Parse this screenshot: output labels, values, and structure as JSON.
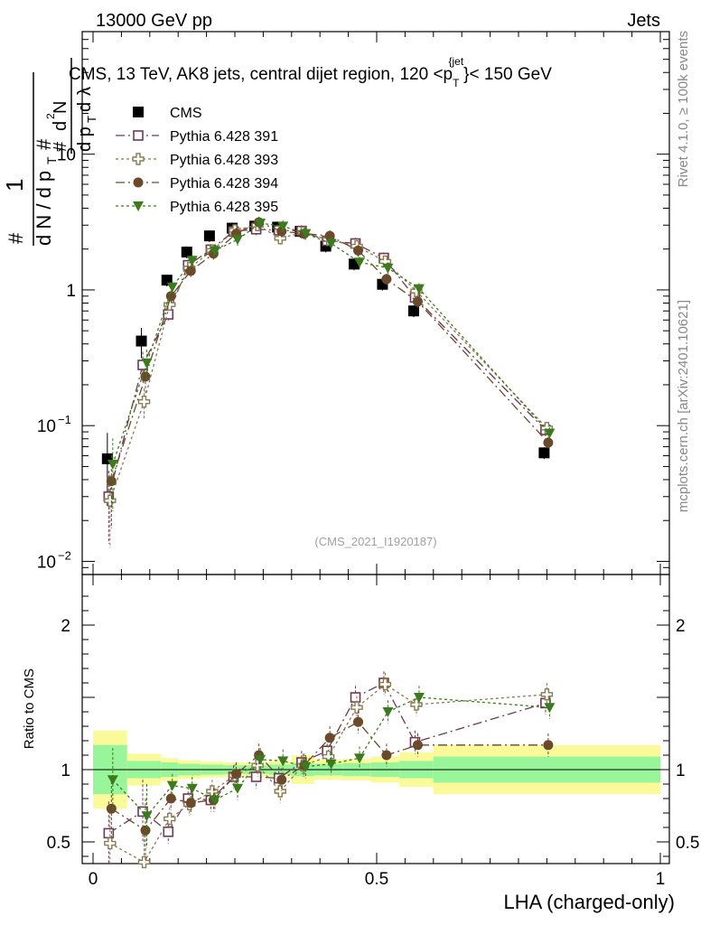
{
  "chart_data": {
    "type": "scatter",
    "header_left": "13000 GeV pp",
    "header_right": "Jets",
    "title": "CMS, 13 TeV, AK8 jets, central dijet region, 120 <p",
    "title_sub": "T",
    "title_sup": "{jet",
    "title_tail": "}< 150 GeV",
    "watermark": "(CMS_2021_I1920187)",
    "side_label_top": "Rivet 4.1.0, ≥ 100k events",
    "side_label_bottom": "mcplots.cern.ch [arXiv:2401.10621]",
    "xlabel": "LHA (charged-only)",
    "ylabel_main": "1/N dN/dp_T dλ",
    "ylabel_ratio": "Ratio to CMS",
    "xlim": [
      0,
      1
    ],
    "ylim_main": [
      0.008,
      80
    ],
    "ylim_ratio": [
      0.35,
      2.35
    ],
    "x_ticks": [
      {
        "v": 0,
        "label": "0"
      },
      {
        "v": 0.5,
        "label": "0.5"
      },
      {
        "v": 1,
        "label": "1"
      }
    ],
    "y_ticks_main": [
      {
        "v": 0.01,
        "base": "10",
        "exp": "−2"
      },
      {
        "v": 0.1,
        "base": "10",
        "exp": "−1"
      },
      {
        "v": 1,
        "base": "1",
        "exp": ""
      },
      {
        "v": 10,
        "base": "10",
        "exp": ""
      }
    ],
    "y_ticks_ratio": [
      {
        "v": 0.5,
        "label": "0.5"
      },
      {
        "v": 1,
        "label": "1"
      },
      {
        "v": 2,
        "label": "2"
      }
    ],
    "bin_edges": [
      0.0,
      0.06,
      0.12,
      0.15,
      0.19,
      0.23,
      0.27,
      0.31,
      0.35,
      0.39,
      0.44,
      0.49,
      0.54,
      0.6,
      1.0
    ],
    "bin_centers": [
      0.03,
      0.09,
      0.135,
      0.17,
      0.21,
      0.25,
      0.29,
      0.33,
      0.37,
      0.415,
      0.465,
      0.515,
      0.57,
      0.8
    ],
    "band_stat": [
      0.17,
      0.06,
      0.05,
      0.04,
      0.035,
      0.03,
      0.03,
      0.035,
      0.045,
      0.04,
      0.045,
      0.05,
      0.06,
      0.09
    ],
    "band_total": [
      0.27,
      0.11,
      0.08,
      0.065,
      0.055,
      0.05,
      0.05,
      0.06,
      0.1,
      0.07,
      0.075,
      0.09,
      0.12,
      0.17
    ],
    "series": [
      {
        "name": "CMS",
        "marker": "square-filled",
        "color": "#000000",
        "line": "none",
        "values": [
          0.057,
          0.42,
          1.18,
          1.9,
          2.5,
          2.85,
          2.95,
          2.9,
          2.7,
          2.1,
          1.55,
          1.1,
          0.7,
          0.063
        ],
        "ratio": [
          1,
          1,
          1,
          1,
          1,
          1,
          1,
          1,
          1,
          1,
          1,
          1,
          1,
          1
        ]
      },
      {
        "name": "Pythia 6.428 391",
        "marker": "square-open",
        "color": "#6b3a57",
        "line": "dashdot",
        "values": [
          0.03,
          0.28,
          0.66,
          1.52,
          1.98,
          2.7,
          2.8,
          2.75,
          2.72,
          2.3,
          2.2,
          1.72,
          0.88,
          0.093
        ],
        "ratio": [
          0.56,
          0.71,
          0.57,
          0.8,
          0.79,
          0.95,
          0.95,
          0.94,
          1.05,
          1.13,
          1.5,
          1.6,
          1.19,
          1.46
        ]
      },
      {
        "name": "Pythia 6.428 393",
        "marker": "cross-open",
        "color": "#8b7a4e",
        "line": "dotted",
        "values": [
          0.028,
          0.15,
          0.78,
          1.45,
          1.95,
          2.75,
          3.0,
          2.4,
          2.65,
          2.35,
          2.1,
          1.62,
          0.98,
          0.096
        ],
        "ratio": [
          0.49,
          0.36,
          0.66,
          0.76,
          0.85,
          0.96,
          1.03,
          0.85,
          1.03,
          1.09,
          1.43,
          1.59,
          1.45,
          1.52
        ]
      },
      {
        "name": "Pythia 6.428 394",
        "marker": "circle-filled",
        "color": "#6a4a2a",
        "line": "dashdot",
        "values": [
          0.039,
          0.23,
          0.9,
          1.38,
          1.85,
          2.6,
          3.15,
          2.7,
          2.6,
          2.5,
          1.95,
          1.2,
          0.82,
          0.075
        ],
        "ratio": [
          0.73,
          0.58,
          0.8,
          0.77,
          0.79,
          0.97,
          1.1,
          0.93,
          1.03,
          1.22,
          1.33,
          1.1,
          1.17,
          1.17
        ]
      },
      {
        "name": "Pythia 6.428 395",
        "marker": "triangle-down-filled",
        "color": "#3c7a1e",
        "line": "dotted",
        "values": [
          0.052,
          0.29,
          1.05,
          1.65,
          1.95,
          2.35,
          3.1,
          2.95,
          2.6,
          2.2,
          1.6,
          1.45,
          1.02,
          0.088
        ],
        "ratio": [
          0.93,
          0.68,
          0.89,
          0.87,
          0.79,
          0.87,
          1.07,
          1.06,
          1.02,
          1.04,
          1.08,
          1.4,
          1.5,
          1.43
        ]
      }
    ]
  },
  "colors": {
    "band_stat": "#99f599",
    "band_total": "#fafa9a"
  }
}
